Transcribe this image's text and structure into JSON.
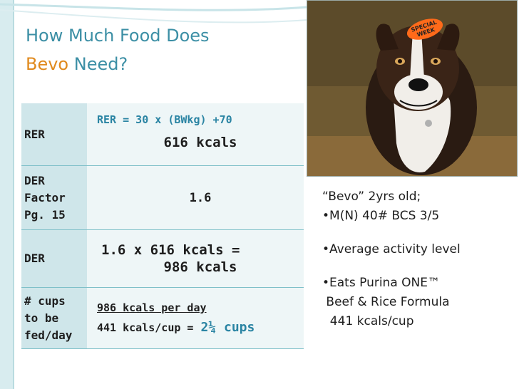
{
  "slide": {
    "title_prefix": "How Much Food Does",
    "title_name": "Bevo",
    "title_suffix": "Need?"
  },
  "table": {
    "rows": [
      {
        "label": "RER",
        "formula": "RER = 30 x (BWkg) +70",
        "value": "616 kcals"
      },
      {
        "label_lines": [
          "DER",
          "Factor",
          "Pg. 15"
        ],
        "value": "1.6"
      },
      {
        "label": "DER",
        "value_line1": "1.6 x 616 kcals =",
        "value_line2": "986 kcals"
      },
      {
        "label_lines": [
          "# cups",
          "to be",
          "fed/day"
        ],
        "value_line1": "986 kcals per day",
        "value_line2": "441 kcals/cup =",
        "result": "2¼ cups"
      }
    ]
  },
  "info": {
    "line1": "“Bevo”  2yrs old;",
    "line2": "•M(N) 40# BCS 3/5",
    "line3": "•Average activity level",
    "line4": "•Eats Purina ONE™",
    "line5": " Beef & Rice Formula",
    "line6": "  441 kcals/cup"
  },
  "photo": {
    "sticker_line1": "SPECIAL",
    "sticker_line2": "WEEK"
  },
  "colors": {
    "title": "#3c8fa5",
    "accent": "#e08a1e",
    "formula": "#2a84a3"
  }
}
